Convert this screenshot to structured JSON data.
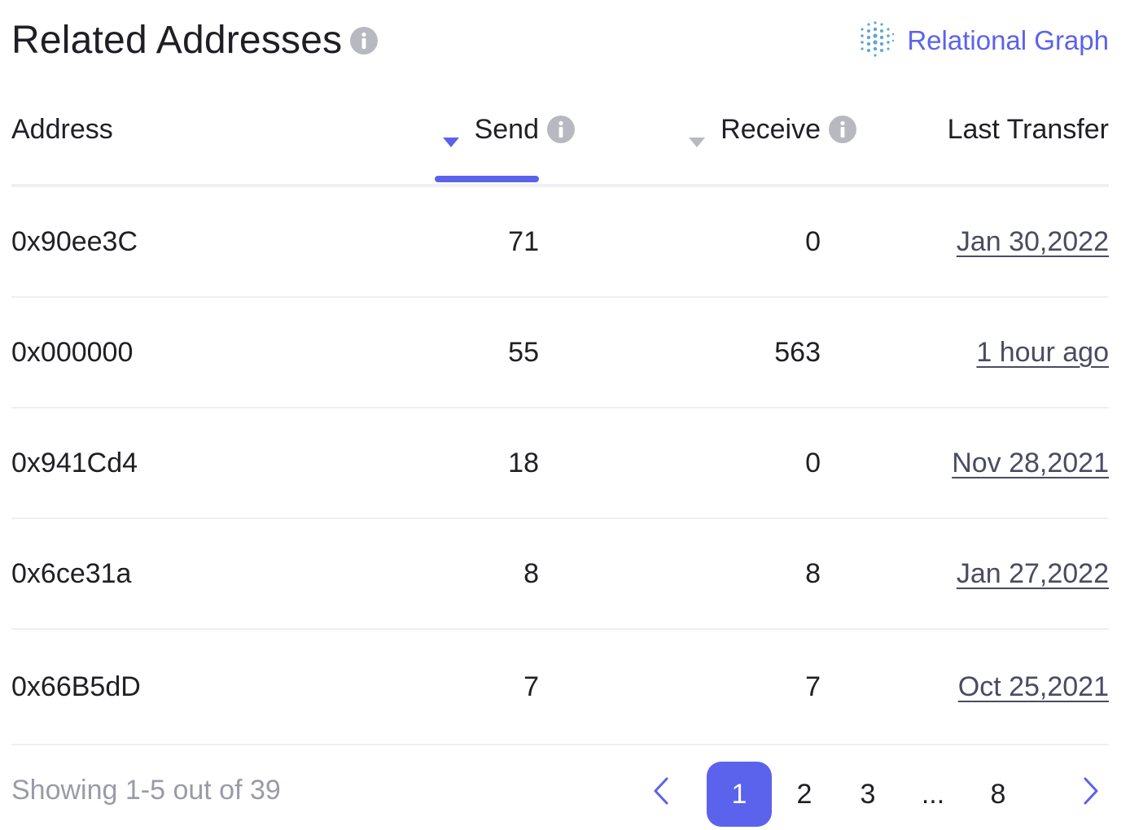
{
  "header": {
    "title": "Related Addresses",
    "graph_link_label": "Relational Graph"
  },
  "table": {
    "columns": {
      "address": "Address",
      "send": "Send",
      "receive": "Receive",
      "last_transfer": "Last Transfer"
    },
    "active_sort": "send",
    "rows": [
      {
        "address": "0x90ee3C",
        "send": "71",
        "receive": "0",
        "last_transfer": "Jan 30,2022"
      },
      {
        "address": "0x000000",
        "send": "55",
        "receive": "563",
        "last_transfer": "1 hour ago"
      },
      {
        "address": "0x941Cd4",
        "send": "18",
        "receive": "0",
        "last_transfer": "Nov 28,2021"
      },
      {
        "address": "0x6ce31a",
        "send": "8",
        "receive": "8",
        "last_transfer": "Jan 27,2022"
      },
      {
        "address": "0x66B5dD",
        "send": "7",
        "receive": "7",
        "last_transfer": "Oct 25,2021"
      }
    ]
  },
  "footer": {
    "showing": "Showing 1-5 out of 39",
    "pages": [
      "1",
      "2",
      "3",
      "...",
      "8"
    ],
    "current_page": "1"
  },
  "colors": {
    "accent": "#5b63ec",
    "info_icon": "#b8b9c0",
    "muted_text": "#9a9ba6",
    "link_text": "#4a4b63"
  },
  "icons": {
    "title_info": "info-icon",
    "graph": "dot-grid-icon",
    "sort_active": "caret-down-icon",
    "sort_inactive": "caret-down-icon",
    "prev": "chevron-left-icon",
    "next": "chevron-right-icon"
  }
}
